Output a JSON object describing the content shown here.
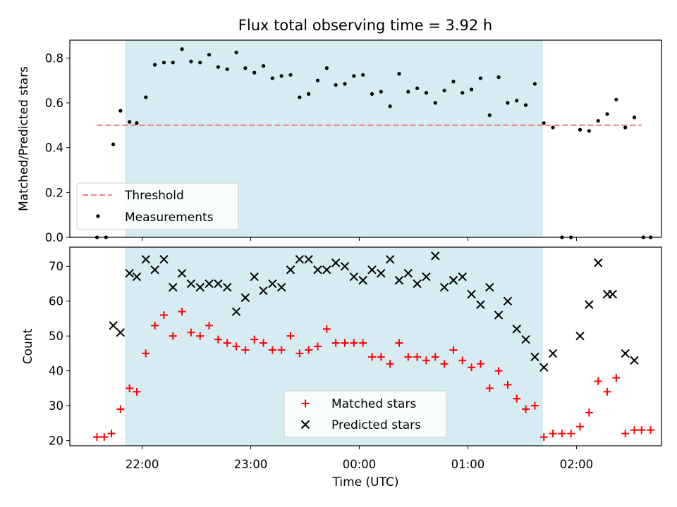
{
  "figure": {
    "title": "Flux total observing time = 3.92 h",
    "xlabel": "Time (UTC)"
  },
  "colors": {
    "shade": "#add8e6",
    "threshold": "#f08080",
    "measurements": "#000000",
    "matched": "#ff0000",
    "predicted": "#000000"
  },
  "chart_data": [
    {
      "type": "scatter",
      "panel": "top",
      "ylabel": "Matched/Predicted stars",
      "xlim": [
        "21:20",
        "02:47"
      ],
      "ylim": [
        0,
        0.88
      ],
      "yticks": [
        "0.0",
        "0.2",
        "0.4",
        "0.6",
        "0.8"
      ],
      "shaded_interval": [
        "21:51",
        "01:41"
      ],
      "threshold": {
        "name": "Threshold",
        "value": 0.5,
        "x_range": [
          "21:35",
          "02:36"
        ]
      },
      "legend": {
        "position": "lower-left",
        "entries": [
          "Threshold",
          "Measurements"
        ]
      },
      "series": [
        {
          "name": "Measurements",
          "points": [
            [
              "21:35",
              0.0
            ],
            [
              "21:40",
              0.0
            ],
            [
              "21:44",
              0.415
            ],
            [
              "21:48",
              0.565
            ],
            [
              "21:53",
              0.515
            ],
            [
              "21:57",
              0.51
            ],
            [
              "22:02",
              0.625
            ],
            [
              "22:07",
              0.77
            ],
            [
              "22:12",
              0.78
            ],
            [
              "22:17",
              0.78
            ],
            [
              "22:22",
              0.84
            ],
            [
              "22:27",
              0.785
            ],
            [
              "22:32",
              0.78
            ],
            [
              "22:37",
              0.815
            ],
            [
              "22:42",
              0.76
            ],
            [
              "22:47",
              0.75
            ],
            [
              "22:52",
              0.825
            ],
            [
              "22:57",
              0.755
            ],
            [
              "23:02",
              0.735
            ],
            [
              "23:07",
              0.765
            ],
            [
              "23:12",
              0.71
            ],
            [
              "23:17",
              0.72
            ],
            [
              "23:22",
              0.725
            ],
            [
              "23:27",
              0.625
            ],
            [
              "23:32",
              0.64
            ],
            [
              "23:37",
              0.7
            ],
            [
              "23:42",
              0.755
            ],
            [
              "23:47",
              0.68
            ],
            [
              "23:52",
              0.685
            ],
            [
              "23:57",
              0.72
            ],
            [
              "00:02",
              0.725
            ],
            [
              "00:07",
              0.64
            ],
            [
              "00:12",
              0.65
            ],
            [
              "00:17",
              0.585
            ],
            [
              "00:22",
              0.73
            ],
            [
              "00:27",
              0.65
            ],
            [
              "00:32",
              0.665
            ],
            [
              "00:37",
              0.645
            ],
            [
              "00:42",
              0.6
            ],
            [
              "00:47",
              0.655
            ],
            [
              "00:52",
              0.695
            ],
            [
              "00:57",
              0.645
            ],
            [
              "01:02",
              0.66
            ],
            [
              "01:07",
              0.71
            ],
            [
              "01:12",
              0.545
            ],
            [
              "01:17",
              0.715
            ],
            [
              "01:22",
              0.6
            ],
            [
              "01:27",
              0.61
            ],
            [
              "01:32",
              0.59
            ],
            [
              "01:37",
              0.685
            ],
            [
              "01:42",
              0.51
            ],
            [
              "01:47",
              0.49
            ],
            [
              "01:52",
              0.0
            ],
            [
              "01:57",
              0.0
            ],
            [
              "02:02",
              0.48
            ],
            [
              "02:07",
              0.475
            ],
            [
              "02:12",
              0.52
            ],
            [
              "02:17",
              0.55
            ],
            [
              "02:22",
              0.615
            ],
            [
              "02:27",
              0.49
            ],
            [
              "02:32",
              0.535
            ],
            [
              "02:37",
              0.0
            ],
            [
              "02:41",
              0.0
            ]
          ]
        }
      ]
    },
    {
      "type": "scatter",
      "panel": "bottom",
      "xlabel": "Time (UTC)",
      "ylabel": "Count",
      "xlim": [
        "21:20",
        "02:47"
      ],
      "ylim": [
        18.5,
        75.5
      ],
      "xticks": [
        "22:00",
        "23:00",
        "00:00",
        "01:00",
        "02:00"
      ],
      "yticks": [
        "20",
        "30",
        "40",
        "50",
        "60",
        "70"
      ],
      "shaded_interval": [
        "21:51",
        "01:41"
      ],
      "legend": {
        "position": "lower-center",
        "entries": [
          "Matched stars",
          "Predicted stars"
        ]
      },
      "series": [
        {
          "name": "Matched stars",
          "marker": "+",
          "points": [
            [
              "21:35",
              21
            ],
            [
              "21:39",
              21
            ],
            [
              "21:43",
              22
            ],
            [
              "21:48",
              29
            ],
            [
              "21:53",
              35
            ],
            [
              "21:57",
              34
            ],
            [
              "22:02",
              45
            ],
            [
              "22:07",
              53
            ],
            [
              "22:12",
              56
            ],
            [
              "22:17",
              50
            ],
            [
              "22:22",
              57
            ],
            [
              "22:27",
              51
            ],
            [
              "22:32",
              50
            ],
            [
              "22:37",
              53
            ],
            [
              "22:42",
              49
            ],
            [
              "22:47",
              48
            ],
            [
              "22:52",
              47
            ],
            [
              "22:57",
              46
            ],
            [
              "23:02",
              49
            ],
            [
              "23:07",
              48
            ],
            [
              "23:12",
              46
            ],
            [
              "23:17",
              46
            ],
            [
              "23:22",
              50
            ],
            [
              "23:27",
              45
            ],
            [
              "23:32",
              46
            ],
            [
              "23:37",
              47
            ],
            [
              "23:42",
              52
            ],
            [
              "23:47",
              48
            ],
            [
              "23:52",
              48
            ],
            [
              "23:57",
              48
            ],
            [
              "00:02",
              48
            ],
            [
              "00:07",
              44
            ],
            [
              "00:12",
              44
            ],
            [
              "00:17",
              42
            ],
            [
              "00:22",
              48
            ],
            [
              "00:27",
              44
            ],
            [
              "00:32",
              44
            ],
            [
              "00:37",
              43
            ],
            [
              "00:42",
              44
            ],
            [
              "00:47",
              42
            ],
            [
              "00:52",
              46
            ],
            [
              "00:57",
              43
            ],
            [
              "01:02",
              41
            ],
            [
              "01:07",
              42
            ],
            [
              "01:12",
              35
            ],
            [
              "01:17",
              40
            ],
            [
              "01:22",
              36
            ],
            [
              "01:27",
              32
            ],
            [
              "01:32",
              29
            ],
            [
              "01:37",
              30
            ],
            [
              "01:42",
              21
            ],
            [
              "01:47",
              22
            ],
            [
              "01:52",
              22
            ],
            [
              "01:57",
              22
            ],
            [
              "02:02",
              24
            ],
            [
              "02:07",
              28
            ],
            [
              "02:12",
              37
            ],
            [
              "02:17",
              34
            ],
            [
              "02:22",
              38
            ],
            [
              "02:27",
              22
            ],
            [
              "02:32",
              23
            ],
            [
              "02:36",
              23
            ],
            [
              "02:41",
              23
            ]
          ]
        },
        {
          "name": "Predicted stars",
          "marker": "x",
          "points": [
            [
              "21:44",
              53
            ],
            [
              "21:48",
              51
            ],
            [
              "21:53",
              68
            ],
            [
              "21:57",
              67
            ],
            [
              "22:02",
              72
            ],
            [
              "22:07",
              69
            ],
            [
              "22:12",
              72
            ],
            [
              "22:17",
              64
            ],
            [
              "22:22",
              68
            ],
            [
              "22:27",
              65
            ],
            [
              "22:32",
              64
            ],
            [
              "22:37",
              65
            ],
            [
              "22:42",
              65
            ],
            [
              "22:47",
              64
            ],
            [
              "22:52",
              57
            ],
            [
              "22:57",
              61
            ],
            [
              "23:02",
              67
            ],
            [
              "23:07",
              63
            ],
            [
              "23:12",
              65
            ],
            [
              "23:17",
              64
            ],
            [
              "23:22",
              69
            ],
            [
              "23:27",
              72
            ],
            [
              "23:32",
              72
            ],
            [
              "23:37",
              69
            ],
            [
              "23:42",
              69
            ],
            [
              "23:47",
              71
            ],
            [
              "23:52",
              70
            ],
            [
              "23:57",
              67
            ],
            [
              "00:02",
              66
            ],
            [
              "00:07",
              69
            ],
            [
              "00:12",
              68
            ],
            [
              "00:17",
              72
            ],
            [
              "00:22",
              66
            ],
            [
              "00:27",
              68
            ],
            [
              "00:32",
              65
            ],
            [
              "00:37",
              67
            ],
            [
              "00:42",
              73
            ],
            [
              "00:47",
              64
            ],
            [
              "00:52",
              66
            ],
            [
              "00:57",
              67
            ],
            [
              "01:02",
              62
            ],
            [
              "01:07",
              59
            ],
            [
              "01:12",
              64
            ],
            [
              "01:17",
              56
            ],
            [
              "01:22",
              60
            ],
            [
              "01:27",
              52
            ],
            [
              "01:32",
              49
            ],
            [
              "01:37",
              44
            ],
            [
              "01:42",
              41
            ],
            [
              "01:47",
              45
            ],
            [
              "02:02",
              50
            ],
            [
              "02:07",
              59
            ],
            [
              "02:12",
              71
            ],
            [
              "02:17",
              62
            ],
            [
              "02:20",
              62
            ],
            [
              "02:27",
              45
            ],
            [
              "02:32",
              43
            ]
          ]
        }
      ]
    }
  ]
}
